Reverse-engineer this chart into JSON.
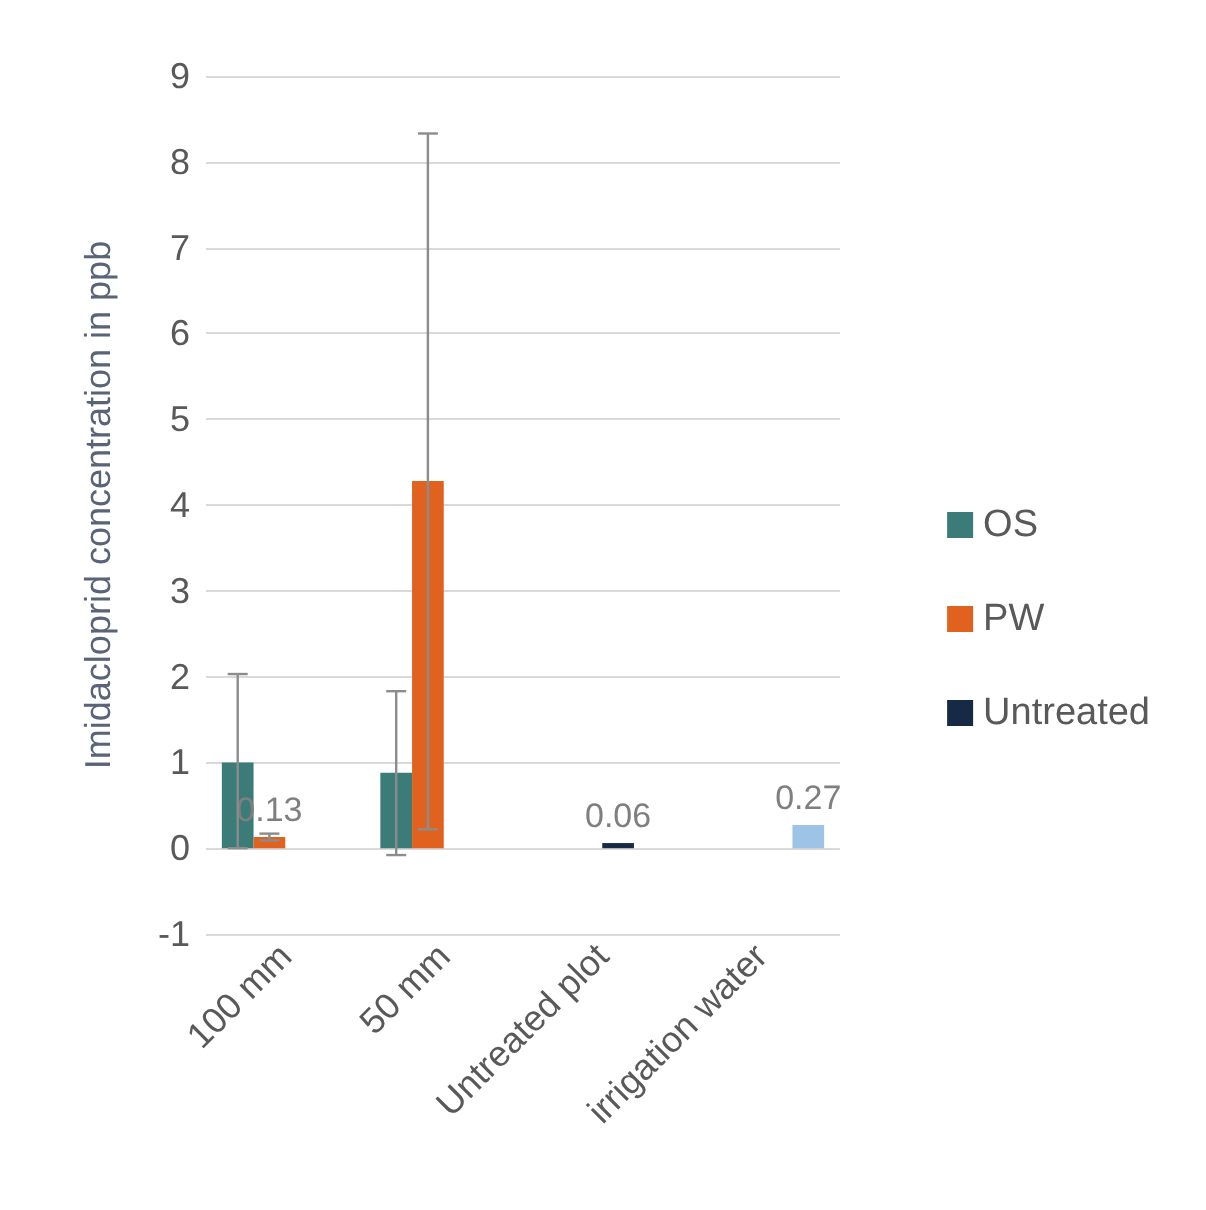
{
  "chart_data": {
    "type": "bar",
    "ylabel": "Imidacloprid concentration in ppb",
    "categories": [
      "100 mm",
      "50 mm",
      "Untreated plot",
      "irrigation water"
    ],
    "series": [
      {
        "name": "OS",
        "color": "#3b7b78",
        "values": [
          1.0,
          0.88,
          null,
          null
        ],
        "errors": [
          [
            0.0,
            2.03
          ],
          [
            -0.08,
            1.83
          ],
          null,
          null
        ]
      },
      {
        "name": "PW",
        "color": "#e0621e",
        "values": [
          0.13,
          4.28,
          null,
          null
        ],
        "errors": [
          [
            0.09,
            0.17
          ],
          [
            0.22,
            8.33
          ],
          null,
          null
        ],
        "value_labels": [
          "0.13",
          null,
          null,
          null
        ]
      },
      {
        "name": "Untreated",
        "color": "#172a45",
        "values": [
          null,
          null,
          0.06,
          null
        ],
        "value_labels": [
          null,
          null,
          "0.06",
          null
        ]
      },
      {
        "color": "#9dc3e6",
        "values": [
          null,
          null,
          null,
          0.27
        ],
        "value_labels": [
          null,
          null,
          null,
          "0.27"
        ]
      }
    ],
    "ylim": [
      -1,
      9
    ],
    "yticks": [
      -1,
      0,
      1,
      2,
      3,
      4,
      5,
      6,
      7,
      8,
      9
    ],
    "grid": "y",
    "legend": "right"
  }
}
